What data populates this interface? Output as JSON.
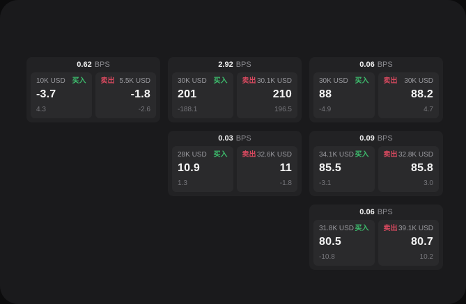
{
  "theme": {
    "outer_bg": "#0c0c0d",
    "surface_bg": "#1a1a1c",
    "card_bg": "#222224",
    "panel_bg": "#2a2a2c",
    "text_primary": "#f5f5f5",
    "text_muted": "#9a9a9f",
    "text_dim": "#77777c",
    "buy_color": "#3dbd6d",
    "sell_color": "#d8495f"
  },
  "labels": {
    "bps_unit": "BPS",
    "buy": "买入",
    "sell": "卖出"
  },
  "cards": [
    {
      "bps": "0.62",
      "buy": {
        "amount": "10K USD",
        "price": "-3.7",
        "delta": "4.3"
      },
      "sell": {
        "amount": "5.5K USD",
        "price": "-1.8",
        "delta": "-2.6"
      }
    },
    {
      "bps": "2.92",
      "buy": {
        "amount": "30K USD",
        "price": "201",
        "delta": "-188.1"
      },
      "sell": {
        "amount": "30.1K USD",
        "price": "210",
        "delta": "196.5"
      }
    },
    {
      "bps": "0.06",
      "buy": {
        "amount": "30K USD",
        "price": "88",
        "delta": "-4.9"
      },
      "sell": {
        "amount": "30K USD",
        "price": "88.2",
        "delta": "4.7"
      }
    },
    {
      "bps": "0.03",
      "buy": {
        "amount": "28K USD",
        "price": "10.9",
        "delta": "1.3"
      },
      "sell": {
        "amount": "32.6K USD",
        "price": "11",
        "delta": "-1.8"
      }
    },
    {
      "bps": "0.09",
      "buy": {
        "amount": "34.1K USD",
        "price": "85.5",
        "delta": "-3.1"
      },
      "sell": {
        "amount": "32.8K USD",
        "price": "85.8",
        "delta": "3.0"
      }
    },
    {
      "bps": "0.06",
      "buy": {
        "amount": "31.8K USD",
        "price": "80.5",
        "delta": "-10.8"
      },
      "sell": {
        "amount": "39.1K USD",
        "price": "80.7",
        "delta": "10.2"
      }
    }
  ]
}
